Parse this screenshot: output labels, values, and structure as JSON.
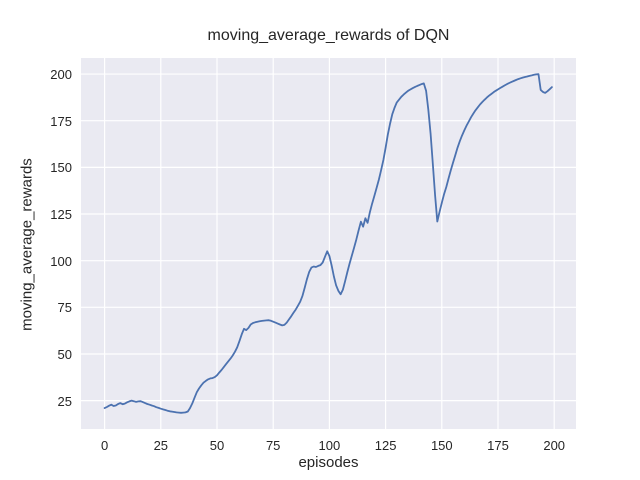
{
  "colors": {
    "figure_bg": "#ffffff",
    "plot_bg": "#eaeaf2",
    "grid": "#ffffff",
    "line": "#4c72b0",
    "text": "#262626"
  },
  "chart_data": {
    "type": "line",
    "title": "moving_average_rewards of DQN",
    "xlabel": "episodes",
    "ylabel": "moving_average_rewards",
    "x_ticks": [
      0,
      25,
      50,
      75,
      100,
      125,
      150,
      175,
      200
    ],
    "y_ticks": [
      25,
      50,
      75,
      100,
      125,
      150,
      175,
      200
    ],
    "xlim": [
      -10.5,
      209.7
    ],
    "ylim": [
      9.8,
      208.6
    ],
    "grid": true,
    "legend_position": "none",
    "series": [
      {
        "name": "DQN moving average reward",
        "color": "#4c72b0",
        "x_start": 0,
        "x_step": 1,
        "y": [
          21.0,
          21.6,
          22.3,
          22.8,
          22.1,
          22.4,
          23.2,
          23.7,
          23.1,
          23.4,
          24.1,
          24.6,
          25.0,
          24.7,
          24.3,
          24.6,
          24.7,
          24.2,
          23.7,
          23.2,
          22.8,
          22.4,
          22.0,
          21.5,
          21.1,
          20.7,
          20.3,
          20.0,
          19.6,
          19.3,
          19.1,
          18.9,
          18.7,
          18.6,
          18.5,
          18.6,
          18.7,
          19.2,
          21.0,
          23.5,
          26.5,
          29.5,
          31.5,
          33.2,
          34.6,
          35.6,
          36.4,
          36.9,
          37.1,
          37.6,
          38.6,
          40.0,
          41.4,
          42.9,
          44.5,
          46.0,
          47.5,
          49.2,
          51.2,
          53.6,
          57.0,
          60.5,
          63.5,
          62.8,
          64.0,
          65.8,
          66.6,
          67.0,
          67.3,
          67.5,
          67.7,
          67.9,
          68.0,
          68.1,
          67.8,
          67.3,
          66.8,
          66.3,
          65.8,
          65.3,
          65.6,
          66.8,
          68.5,
          70.2,
          72.0,
          73.8,
          75.8,
          78.0,
          81.0,
          85.5,
          90.0,
          94.0,
          96.3,
          96.9,
          96.6,
          97.2,
          97.6,
          99.0,
          102.0,
          105.0,
          102.5,
          97.5,
          91.5,
          86.8,
          83.8,
          82.0,
          84.5,
          89.0,
          94.0,
          98.5,
          102.8,
          107.0,
          111.5,
          116.2,
          120.9,
          118.2,
          122.7,
          120.3,
          126.0,
          130.5,
          134.8,
          139.0,
          143.5,
          148.5,
          154.0,
          160.5,
          167.5,
          173.5,
          178.5,
          182.0,
          184.8,
          186.3,
          187.8,
          189.0,
          190.0,
          191.0,
          191.7,
          192.4,
          193.0,
          193.6,
          194.1,
          194.6,
          195.0,
          191.0,
          181.0,
          168.0,
          152.0,
          135.0,
          121.0,
          126.0,
          131.0,
          135.5,
          139.5,
          144.0,
          148.5,
          152.5,
          156.5,
          160.5,
          164.0,
          167.0,
          169.8,
          172.3,
          174.6,
          176.8,
          178.8,
          180.6,
          182.2,
          183.7,
          185.0,
          186.2,
          187.4,
          188.4,
          189.3,
          190.2,
          191.0,
          191.8,
          192.5,
          193.2,
          193.9,
          194.6,
          195.2,
          195.8,
          196.3,
          196.8,
          197.3,
          197.7,
          198.1,
          198.4,
          198.7,
          199.0,
          199.3,
          199.6,
          199.8,
          199.9,
          191.5,
          190.4,
          189.9,
          190.8,
          191.9,
          193.0
        ]
      }
    ]
  }
}
